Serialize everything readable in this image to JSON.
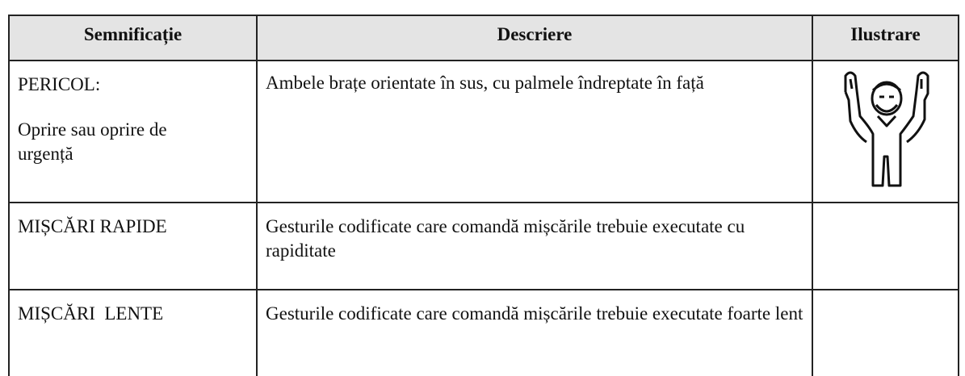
{
  "table": {
    "header": [
      "Semnificație",
      "Descriere",
      "Ilustrare"
    ],
    "rows": [
      {
        "meaning": [
          "PERICOL:",
          "Oprire sau oprire de urgență"
        ],
        "description": "Ambele brațe orientate în sus, cu palmele îndreptate în față"
      },
      {
        "meaning": [
          "MIȘCĂRI RAPIDE"
        ],
        "description": "Gesturile codificate care comandă mișcările trebuie executate cu rapiditate"
      },
      {
        "meaning": [
          "MIȘCĂRI  LENTE"
        ],
        "description": "Gesturile codificate care comandă mișcările trebuie executate foarte lent"
      }
    ]
  }
}
